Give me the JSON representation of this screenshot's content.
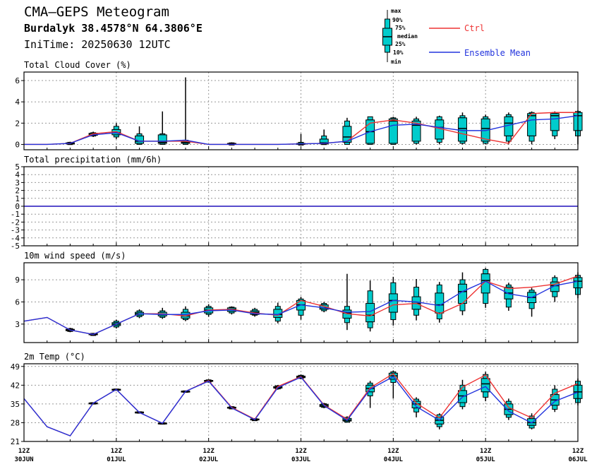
{
  "header": {
    "title": "CMA—GEPS Meteogram",
    "location": "Burdalyk 38.4578°N 64.3806°E",
    "init_time": "IniTime: 20250630 12UTC"
  },
  "legend": {
    "box_labels": [
      "max",
      "90%",
      "75%",
      "median",
      "25%",
      "10%",
      "min"
    ],
    "ctrl_label": "Ctrl",
    "mean_label": "Ensemble Mean",
    "colors": {
      "ctrl": "#ee3333",
      "mean": "#2233dd",
      "box": "#00cccc",
      "grid": "#999999"
    }
  },
  "x_axis": {
    "tick_labels": [
      {
        "hour": "12Z",
        "date": "30JUN"
      },
      {
        "hour": "12Z",
        "date": "01JUL"
      },
      {
        "hour": "12Z",
        "date": "02JUL"
      },
      {
        "hour": "12Z",
        "date": "03JUL"
      },
      {
        "hour": "12Z",
        "date": "04JUL"
      },
      {
        "hour": "12Z",
        "date": "05JUL"
      },
      {
        "hour": "12Z",
        "date": "06JUL"
      }
    ],
    "n_steps": 24
  },
  "chart_data": [
    {
      "type": "box",
      "title": "Total Cloud Cover (%)",
      "ylim": [
        -0.5,
        6.8
      ],
      "yticks": [
        0,
        2,
        4,
        6
      ],
      "ctrl": [
        0,
        0,
        0.1,
        1.0,
        1.2,
        0.3,
        0.3,
        0.3,
        0,
        0,
        0,
        0,
        0.05,
        0.1,
        0.3,
        2.0,
        2.3,
        2.0,
        1.5,
        1.0,
        0.5,
        0.1,
        2.9,
        3.0,
        3.0
      ],
      "mean": [
        0,
        0,
        0.1,
        0.9,
        1.1,
        0.3,
        0.3,
        0.4,
        0,
        0,
        0,
        0,
        0.05,
        0.1,
        0.3,
        1.2,
        1.8,
        1.9,
        1.6,
        1.3,
        1.3,
        1.8,
        2.3,
        2.4,
        2.7
      ],
      "boxes": [
        null,
        null,
        [
          0,
          0,
          0.05,
          0.1,
          0.15,
          0.2,
          0.25
        ],
        [
          0.7,
          0.8,
          0.85,
          0.95,
          1.05,
          1.1,
          1.2
        ],
        [
          0.5,
          0.7,
          0.9,
          1.1,
          1.4,
          1.7,
          2.0
        ],
        [
          0,
          0,
          0.1,
          0.3,
          0.8,
          1.0,
          1.7
        ],
        [
          0,
          0,
          0.1,
          0.2,
          0.9,
          1.0,
          3.1
        ],
        [
          0,
          0,
          0.1,
          0.2,
          0.3,
          0.4,
          6.3
        ],
        null,
        [
          0,
          0,
          0,
          0.05,
          0.1,
          0.15,
          0.2
        ],
        null,
        null,
        [
          0,
          0,
          0,
          0.05,
          0.1,
          0.2,
          1.0
        ],
        [
          0,
          0,
          0.05,
          0.15,
          0.5,
          0.8,
          1.4
        ],
        [
          0,
          0,
          0.2,
          0.7,
          1.7,
          2.2,
          2.5
        ],
        [
          0,
          0,
          0.1,
          1.2,
          2.3,
          2.6,
          2.6
        ],
        [
          0,
          0,
          0.1,
          2.2,
          2.4,
          2.5,
          2.6
        ],
        [
          0,
          0.1,
          0.3,
          1.8,
          2.2,
          2.4,
          2.6
        ],
        [
          0,
          0.2,
          0.5,
          1.6,
          2.3,
          2.6,
          2.7
        ],
        [
          0,
          0.1,
          0.3,
          1.5,
          2.5,
          2.7,
          3.0
        ],
        [
          0,
          0.1,
          0.3,
          1.5,
          2.4,
          2.6,
          2.8
        ],
        [
          0,
          0.3,
          0.8,
          2.0,
          2.6,
          2.8,
          3.0
        ],
        [
          0,
          0.3,
          0.8,
          2.7,
          2.9,
          3.0,
          3.1
        ],
        [
          0.5,
          0.8,
          1.3,
          2.7,
          2.9,
          3.0,
          3.1
        ],
        [
          0,
          0.8,
          1.3,
          2.7,
          3.0,
          3.1,
          3.2
        ]
      ]
    },
    {
      "type": "line",
      "title": "Total precipitation (mm/6h)",
      "ylim": [
        -5,
        5
      ],
      "yticks": [
        -5,
        -4,
        -3,
        -2,
        -1,
        0,
        1,
        2,
        3,
        4,
        5
      ],
      "ctrl": [
        0,
        0,
        0,
        0,
        0,
        0,
        0,
        0,
        0,
        0,
        0,
        0,
        0,
        0,
        0,
        0,
        0,
        0,
        0,
        0,
        0,
        0,
        0,
        0,
        0
      ],
      "mean": [
        0,
        0,
        0,
        0,
        0,
        0,
        0,
        0,
        0,
        0,
        0,
        0,
        0,
        0,
        0,
        0,
        0,
        0,
        0,
        0,
        0,
        0,
        0,
        0,
        0
      ],
      "boxes": []
    },
    {
      "type": "box",
      "title": "10m wind speed (m/s)",
      "ylim": [
        0.5,
        11.3
      ],
      "yticks": [
        3,
        6,
        9
      ],
      "ctrl": [
        3.4,
        3.9,
        2.2,
        1.6,
        3.0,
        4.4,
        4.4,
        4.1,
        4.9,
        5.0,
        4.5,
        4.2,
        6.2,
        5.4,
        4.4,
        4.1,
        5.6,
        5.8,
        4.4,
        5.8,
        8.8,
        7.8,
        8.0,
        8.4,
        9.5
      ],
      "mean": [
        3.4,
        3.9,
        2.2,
        1.6,
        3.0,
        4.4,
        4.3,
        4.3,
        4.8,
        4.9,
        4.4,
        4.3,
        5.6,
        5.2,
        4.6,
        4.7,
        6.2,
        6.0,
        5.5,
        7.4,
        8.8,
        7.1,
        6.6,
        8.2,
        8.8
      ],
      "boxes": [
        null,
        null,
        [
          1.9,
          2.0,
          2.1,
          2.2,
          2.3,
          2.4,
          2.5
        ],
        [
          1.4,
          1.5,
          1.55,
          1.6,
          1.7,
          1.75,
          1.8
        ],
        [
          2.4,
          2.6,
          2.8,
          3.0,
          3.2,
          3.4,
          3.6
        ],
        [
          3.8,
          4.0,
          4.2,
          4.4,
          4.6,
          4.8,
          5.0
        ],
        [
          3.7,
          3.9,
          4.1,
          4.3,
          4.6,
          4.8,
          5.2
        ],
        [
          3.4,
          3.6,
          3.8,
          4.1,
          4.6,
          5.0,
          5.4
        ],
        [
          4.0,
          4.3,
          4.5,
          4.9,
          5.2,
          5.4,
          5.7
        ],
        [
          4.3,
          4.5,
          4.7,
          5.0,
          5.2,
          5.3,
          5.4
        ],
        [
          4.0,
          4.2,
          4.3,
          4.6,
          4.8,
          5.0,
          5.2
        ],
        [
          3.1,
          3.4,
          3.9,
          4.3,
          5.0,
          5.4,
          5.9
        ],
        [
          3.6,
          4.2,
          4.9,
          5.6,
          6.2,
          6.4,
          6.7
        ],
        [
          4.6,
          4.8,
          5.0,
          5.2,
          5.6,
          5.8,
          6.0
        ],
        [
          2.2,
          3.2,
          3.8,
          4.5,
          4.9,
          5.4,
          9.8
        ],
        [
          2.0,
          2.5,
          3.3,
          4.2,
          5.8,
          7.5,
          8.9
        ],
        [
          2.8,
          3.6,
          4.6,
          6.2,
          7.1,
          8.6,
          9.4
        ],
        [
          3.5,
          4.2,
          5.0,
          5.8,
          6.7,
          8.0,
          9.1
        ],
        [
          3.2,
          3.7,
          4.5,
          5.6,
          7.2,
          8.3,
          8.7
        ],
        [
          4.2,
          4.8,
          5.8,
          7.4,
          8.4,
          9.0,
          10.0
        ],
        [
          5.2,
          5.8,
          7.2,
          8.9,
          9.8,
          10.4,
          10.6
        ],
        [
          4.8,
          5.3,
          6.4,
          7.2,
          8.0,
          8.3,
          8.6
        ],
        [
          4.0,
          5.1,
          5.9,
          6.6,
          7.3,
          7.6,
          7.9
        ],
        [
          6.0,
          6.7,
          7.4,
          8.2,
          8.7,
          9.3,
          9.6
        ],
        [
          6.5,
          7.0,
          7.9,
          8.8,
          9.3,
          9.6,
          10.0
        ]
      ]
    },
    {
      "type": "box",
      "title": "2m Temp (°C)",
      "ylim": [
        21,
        50
      ],
      "yticks": [
        21,
        28,
        35,
        42,
        49
      ],
      "ctrl": [
        37.0,
        26.5,
        23.1,
        35.3,
        40.4,
        31.8,
        27.8,
        39.7,
        43.7,
        33.7,
        29.3,
        41.5,
        45.2,
        34.6,
        29.3,
        41.0,
        46.3,
        35.3,
        29.8,
        41.3,
        45.8,
        33.7,
        29.8,
        39.0,
        42.6
      ],
      "mean": [
        37.0,
        26.5,
        23.1,
        35.3,
        40.4,
        31.8,
        27.8,
        39.7,
        43.5,
        33.5,
        29.1,
        41.1,
        45.0,
        34.4,
        28.9,
        40.5,
        45.2,
        34.0,
        28.9,
        37.6,
        41.5,
        32.3,
        27.9,
        36.0,
        39.4
      ],
      "boxes": [
        null,
        null,
        null,
        [
          35.0,
          35.1,
          35.2,
          35.3,
          35.4,
          35.5,
          35.6
        ],
        [
          40.1,
          40.2,
          40.3,
          40.4,
          40.5,
          40.6,
          40.7
        ],
        [
          31.6,
          31.7,
          31.8,
          31.9,
          32.0,
          32.1,
          32.2
        ],
        [
          27.5,
          27.6,
          27.7,
          27.8,
          27.9,
          28.0,
          28.1
        ],
        [
          39.4,
          39.5,
          39.6,
          39.7,
          39.8,
          39.9,
          40.0
        ],
        [
          43.0,
          43.2,
          43.4,
          43.6,
          43.8,
          44.0,
          44.2
        ],
        [
          33.0,
          33.2,
          33.4,
          33.6,
          33.8,
          34.0,
          34.2
        ],
        [
          28.7,
          28.8,
          29.0,
          29.2,
          29.4,
          29.5,
          29.7
        ],
        [
          40.3,
          40.6,
          40.9,
          41.2,
          41.5,
          41.8,
          42.1
        ],
        [
          44.2,
          44.5,
          44.8,
          45.1,
          45.4,
          45.7,
          46.0
        ],
        [
          33.4,
          33.7,
          34.0,
          34.4,
          34.8,
          35.1,
          35.4
        ],
        [
          28.0,
          28.2,
          28.6,
          29.0,
          29.6,
          30.0,
          30.4
        ],
        [
          33.5,
          38.0,
          39.5,
          40.8,
          42.0,
          42.8,
          43.6
        ],
        [
          37.0,
          43.0,
          44.2,
          45.5,
          46.5,
          47.0,
          47.5
        ],
        [
          30.0,
          32.0,
          33.5,
          35.0,
          36.0,
          36.8,
          37.5
        ],
        [
          25.5,
          26.5,
          27.5,
          28.9,
          30.0,
          31.0,
          31.5
        ],
        [
          33.0,
          34.0,
          35.5,
          38.0,
          40.0,
          42.0,
          44.0
        ],
        [
          36.0,
          37.5,
          39.5,
          42.5,
          44.5,
          46.0,
          47.0
        ],
        [
          29.0,
          30.0,
          31.0,
          33.0,
          35.0,
          36.0,
          37.0
        ],
        [
          25.5,
          26.0,
          27.0,
          28.0,
          29.5,
          30.5,
          31.5
        ],
        [
          32.0,
          33.0,
          34.5,
          36.5,
          38.5,
          40.5,
          42.0
        ],
        [
          34.5,
          35.5,
          37.0,
          39.5,
          42.0,
          43.5,
          44.5
        ]
      ]
    }
  ]
}
